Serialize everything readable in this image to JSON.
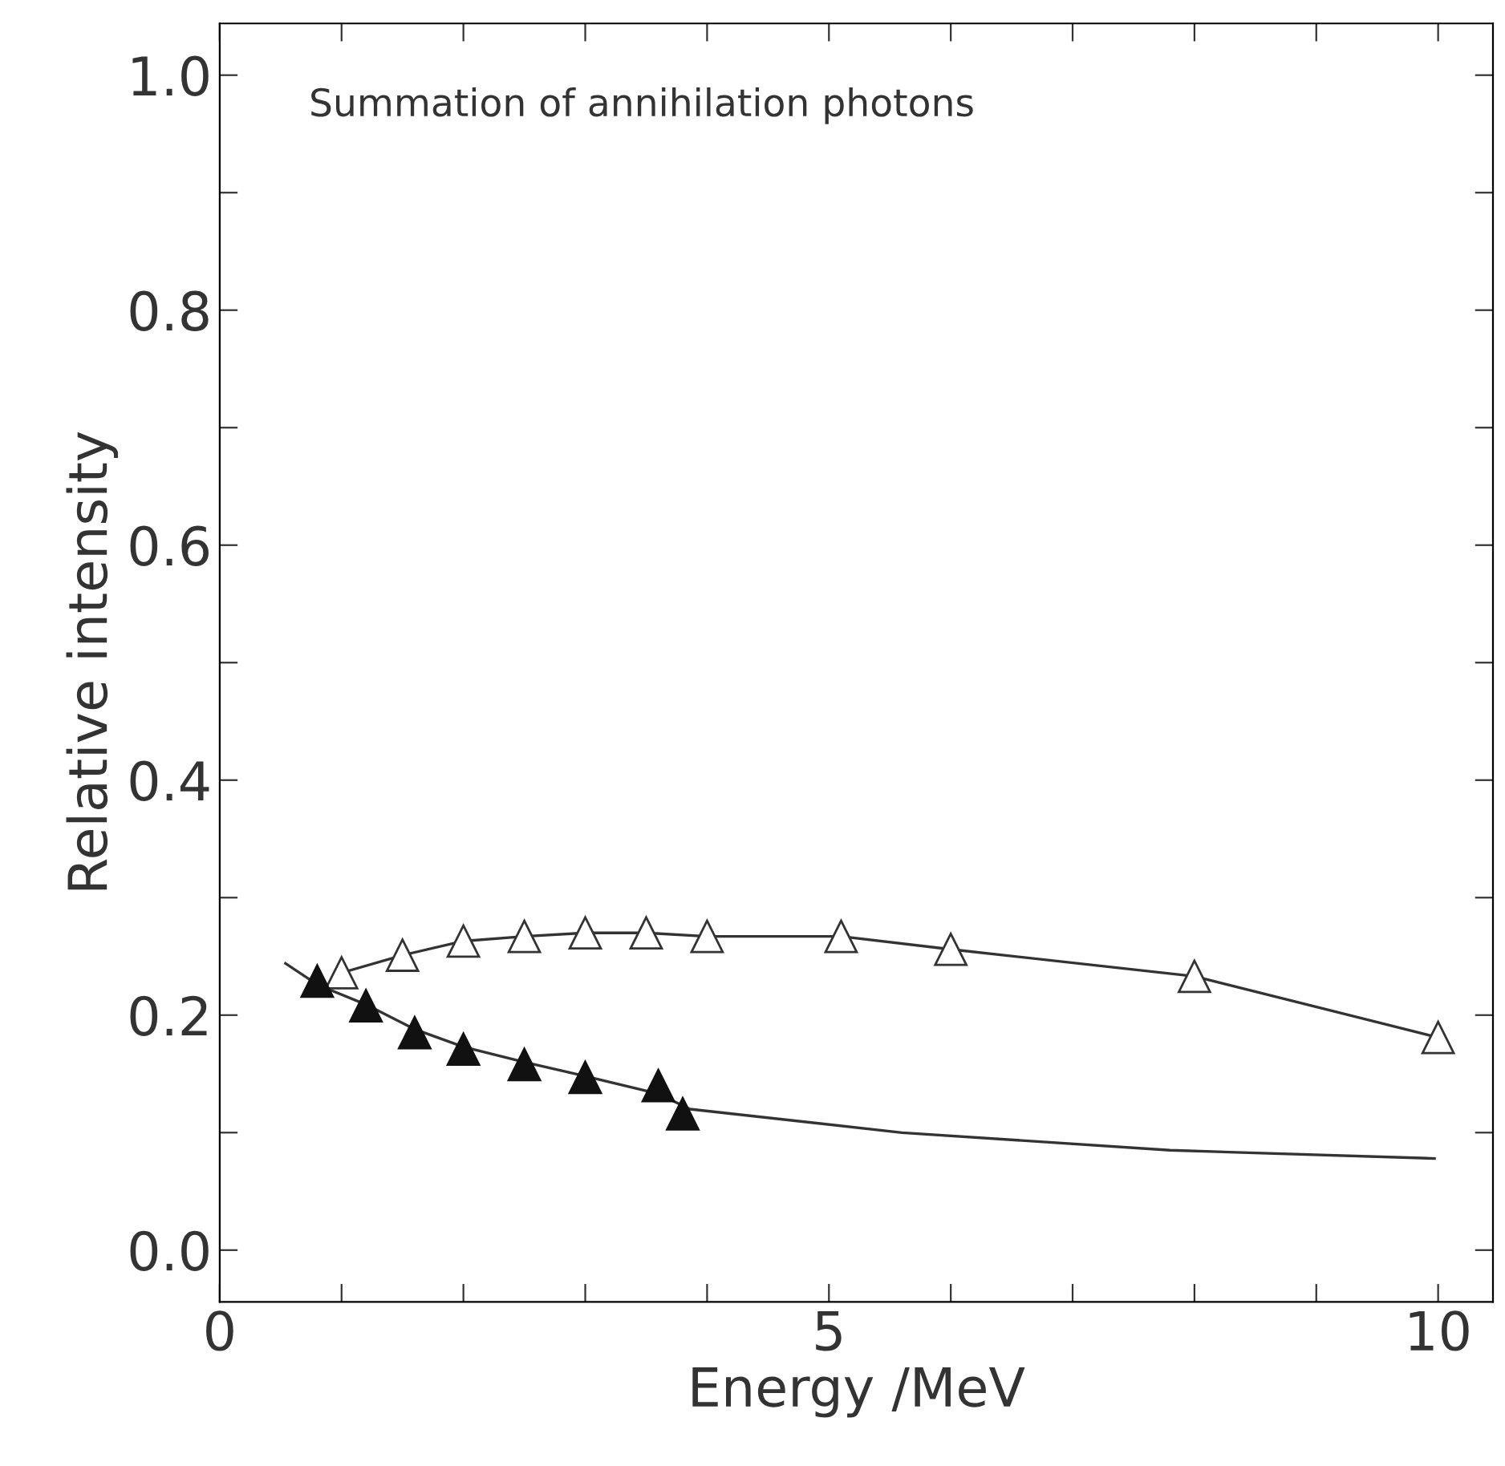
{
  "chart_data": {
    "type": "line",
    "xlabel": "Energy /MeV",
    "ylabel": "Relative intensity",
    "annotations": [
      "Summation of annihilation photons"
    ],
    "xlim": [
      0,
      10.45
    ],
    "ylim": [
      -0.044,
      1.044
    ],
    "xticks": [
      0,
      {
        "value": 1,
        "label": null
      },
      {
        "value": 2,
        "label": null
      },
      {
        "value": 3,
        "label": null
      },
      {
        "value": 4,
        "label": null
      },
      5,
      {
        "value": 6,
        "label": null
      },
      {
        "value": 7,
        "label": null
      },
      {
        "value": 8,
        "label": null
      },
      {
        "value": 9,
        "label": null
      },
      10
    ],
    "yticks": [
      {
        "value": 0,
        "label": "0.0"
      },
      {
        "value": 0.1,
        "label": null
      },
      0.2,
      {
        "value": 0.3,
        "label": null
      },
      0.4,
      {
        "value": 0.5,
        "label": null
      },
      0.6,
      {
        "value": 0.7,
        "label": null
      },
      0.8,
      {
        "value": 0.9,
        "label": null
      },
      {
        "value": 1,
        "label": "1.0"
      }
    ],
    "grid": false,
    "legend": false,
    "series": [
      {
        "marker": "triangle",
        "color": "#333333",
        "x": [
          1.0,
          1.5,
          2.0,
          2.5,
          3.0,
          3.5,
          4.0,
          5.1,
          6.0,
          8.0,
          10.0
        ],
        "values": [
          0.236,
          0.251,
          0.263,
          0.267,
          0.27,
          0.27,
          0.267,
          0.267,
          0.256,
          0.233,
          0.181
        ]
      },
      {
        "type": "scatter",
        "marker": "triangle",
        "color": "#111111",
        "x": [
          0.8,
          1.2,
          1.6,
          2.0,
          2.5,
          3.0,
          3.6,
          3.8
        ],
        "values": [
          0.229,
          0.208,
          0.185,
          0.171,
          0.158,
          0.147,
          0.14,
          0.116
        ]
      },
      {
        "type": "line",
        "marker": "none",
        "color": "#333333",
        "x": [
          0.54,
          0.8,
          1.2,
          1.6,
          2.0,
          2.5,
          3.0,
          3.6,
          3.86,
          5.6,
          7.8,
          9.97
        ],
        "values": [
          0.244,
          0.226,
          0.209,
          0.188,
          0.173,
          0.16,
          0.148,
          0.133,
          0.12,
          0.1,
          0.085,
          0.078
        ]
      }
    ]
  }
}
